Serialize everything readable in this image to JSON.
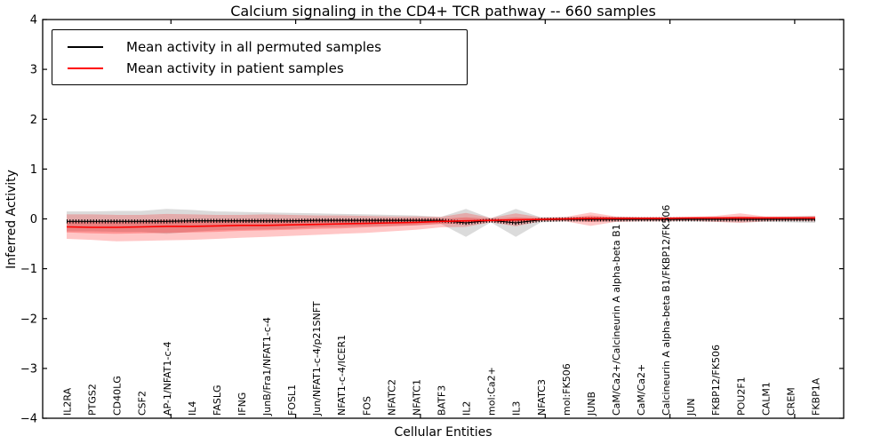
{
  "title": "Calcium signaling in the CD4+ TCR pathway -- 660 samples",
  "legend": {
    "items": [
      {
        "label": "Mean activity in all permuted samples",
        "color": "#000000"
      },
      {
        "label": "Mean activity in patient samples",
        "color": "#ff0000"
      }
    ]
  },
  "axes": {
    "ylabel": "Inferred Activity",
    "xlabel": "Cellular Entities",
    "ytick_labels": [
      "4",
      "3",
      "2",
      "1",
      "0",
      "−1",
      "−2",
      "−3",
      "−4"
    ],
    "ytick_values": [
      4,
      3,
      2,
      1,
      0,
      -1,
      -2,
      -3,
      -4
    ]
  },
  "chart_data": {
    "type": "line",
    "title": "Calcium signaling in the CD4+ TCR pathway -- 660 samples",
    "xlabel": "Cellular Entities",
    "ylabel": "Inferred Activity",
    "ylim": [
      -4,
      4
    ],
    "grid": false,
    "legend_position": "upper left",
    "x_major_tick_indices": [
      4,
      9,
      14,
      19,
      24,
      29
    ],
    "categories": [
      "IL2RA",
      "PTGS2",
      "CD40LG",
      "CSF2",
      "AP-1/NFAT1-c-4",
      "IL4",
      "FASLG",
      "IFNG",
      "JunB/Fra1/NFAT1-c-4",
      "FOSL1",
      "Jun/NFAT1-c-4/p21SNFT",
      "NFAT1-c-4/ICER1",
      "FOS",
      "NFATC2",
      "NFATC1",
      "BATF3",
      "IL2",
      "mol:Ca2+",
      "IL3",
      "NFATC3",
      "mol:FK506",
      "JUNB",
      "CaM/Ca2+/Calcineurin A alpha-beta B1",
      "CaM/Ca2+",
      "Calcineurin A alpha-beta B1/FKBP12/FK506",
      "JUN",
      "FKBP12/FK506",
      "POU2F1",
      "CALM1",
      "CREM",
      "FKBP1A"
    ],
    "series": [
      {
        "name": "Mean activity in all permuted samples",
        "color": "#000000",
        "style": "solid-with-dotted-overlay",
        "values": [
          -0.05,
          -0.05,
          -0.05,
          -0.05,
          -0.05,
          -0.04,
          -0.04,
          -0.04,
          -0.04,
          -0.04,
          -0.03,
          -0.03,
          -0.03,
          -0.03,
          -0.03,
          -0.03,
          -0.08,
          -0.03,
          -0.08,
          -0.02,
          -0.01,
          -0.01,
          -0.01,
          -0.01,
          -0.01,
          -0.01,
          -0.01,
          -0.01,
          -0.01,
          -0.01,
          -0.01
        ]
      },
      {
        "name": "Mean activity in patient samples",
        "color": "#ff0000",
        "style": "solid",
        "values": [
          -0.16,
          -0.17,
          -0.17,
          -0.16,
          -0.15,
          -0.15,
          -0.14,
          -0.13,
          -0.13,
          -0.12,
          -0.11,
          -0.1,
          -0.09,
          -0.08,
          -0.07,
          -0.05,
          -0.04,
          -0.03,
          -0.02,
          -0.01,
          0.0,
          0.01,
          0.01,
          0.01,
          0.01,
          0.02,
          0.02,
          0.02,
          0.02,
          0.02,
          0.02
        ]
      }
    ],
    "bands": [
      {
        "name": "permuted-samples-band",
        "color": "#999999",
        "opacity": 0.35,
        "upper": [
          0.15,
          0.15,
          0.16,
          0.16,
          0.2,
          0.18,
          0.15,
          0.14,
          0.13,
          0.12,
          0.11,
          0.1,
          0.09,
          0.08,
          0.07,
          0.04,
          0.2,
          0.01,
          0.2,
          0.03,
          0.03,
          0.04,
          0.04,
          0.03,
          0.03,
          0.03,
          0.04,
          0.05,
          0.04,
          0.05,
          0.06
        ],
        "lower": [
          -0.25,
          -0.25,
          -0.26,
          -0.26,
          -0.3,
          -0.26,
          -0.23,
          -0.22,
          -0.21,
          -0.2,
          -0.17,
          -0.16,
          -0.15,
          -0.14,
          -0.13,
          -0.1,
          -0.36,
          -0.07,
          -0.36,
          -0.07,
          -0.05,
          -0.06,
          -0.06,
          -0.05,
          -0.05,
          -0.05,
          -0.06,
          -0.07,
          -0.06,
          -0.07,
          -0.08
        ]
      },
      {
        "name": "patient-samples-band-outer",
        "color": "#ff0000",
        "opacity": 0.22,
        "upper": [
          0.09,
          0.09,
          0.08,
          0.08,
          0.1,
          0.09,
          0.08,
          0.08,
          0.09,
          0.08,
          0.07,
          0.07,
          0.06,
          0.05,
          0.05,
          0.04,
          0.12,
          0.02,
          0.11,
          0.03,
          0.04,
          0.13,
          0.05,
          0.04,
          0.04,
          0.04,
          0.06,
          0.11,
          0.05,
          0.05,
          0.06
        ],
        "lower": [
          -0.4,
          -0.42,
          -0.45,
          -0.44,
          -0.43,
          -0.42,
          -0.4,
          -0.38,
          -0.36,
          -0.34,
          -0.32,
          -0.3,
          -0.28,
          -0.25,
          -0.22,
          -0.17,
          -0.16,
          -0.07,
          -0.15,
          -0.05,
          -0.05,
          -0.14,
          -0.06,
          -0.05,
          -0.05,
          -0.04,
          -0.06,
          -0.08,
          -0.05,
          -0.04,
          -0.05
        ]
      },
      {
        "name": "patient-samples-band-inner",
        "color": "#ff0000",
        "opacity": 0.25,
        "upper": [
          -0.04,
          -0.05,
          -0.04,
          -0.03,
          -0.02,
          -0.03,
          -0.02,
          -0.02,
          -0.02,
          -0.02,
          -0.01,
          -0.01,
          -0.01,
          0.0,
          0.0,
          0.0,
          0.03,
          0.0,
          0.03,
          0.01,
          0.02,
          0.07,
          0.03,
          0.02,
          0.02,
          0.02,
          0.03,
          0.05,
          0.03,
          0.03,
          0.03
        ],
        "lower": [
          -0.27,
          -0.29,
          -0.3,
          -0.29,
          -0.28,
          -0.27,
          -0.26,
          -0.24,
          -0.23,
          -0.22,
          -0.2,
          -0.19,
          -0.17,
          -0.15,
          -0.13,
          -0.1,
          -0.09,
          -0.05,
          -0.08,
          -0.03,
          -0.02,
          -0.06,
          -0.03,
          -0.02,
          -0.02,
          -0.02,
          -0.02,
          -0.03,
          -0.02,
          -0.01,
          -0.02
        ]
      }
    ]
  }
}
